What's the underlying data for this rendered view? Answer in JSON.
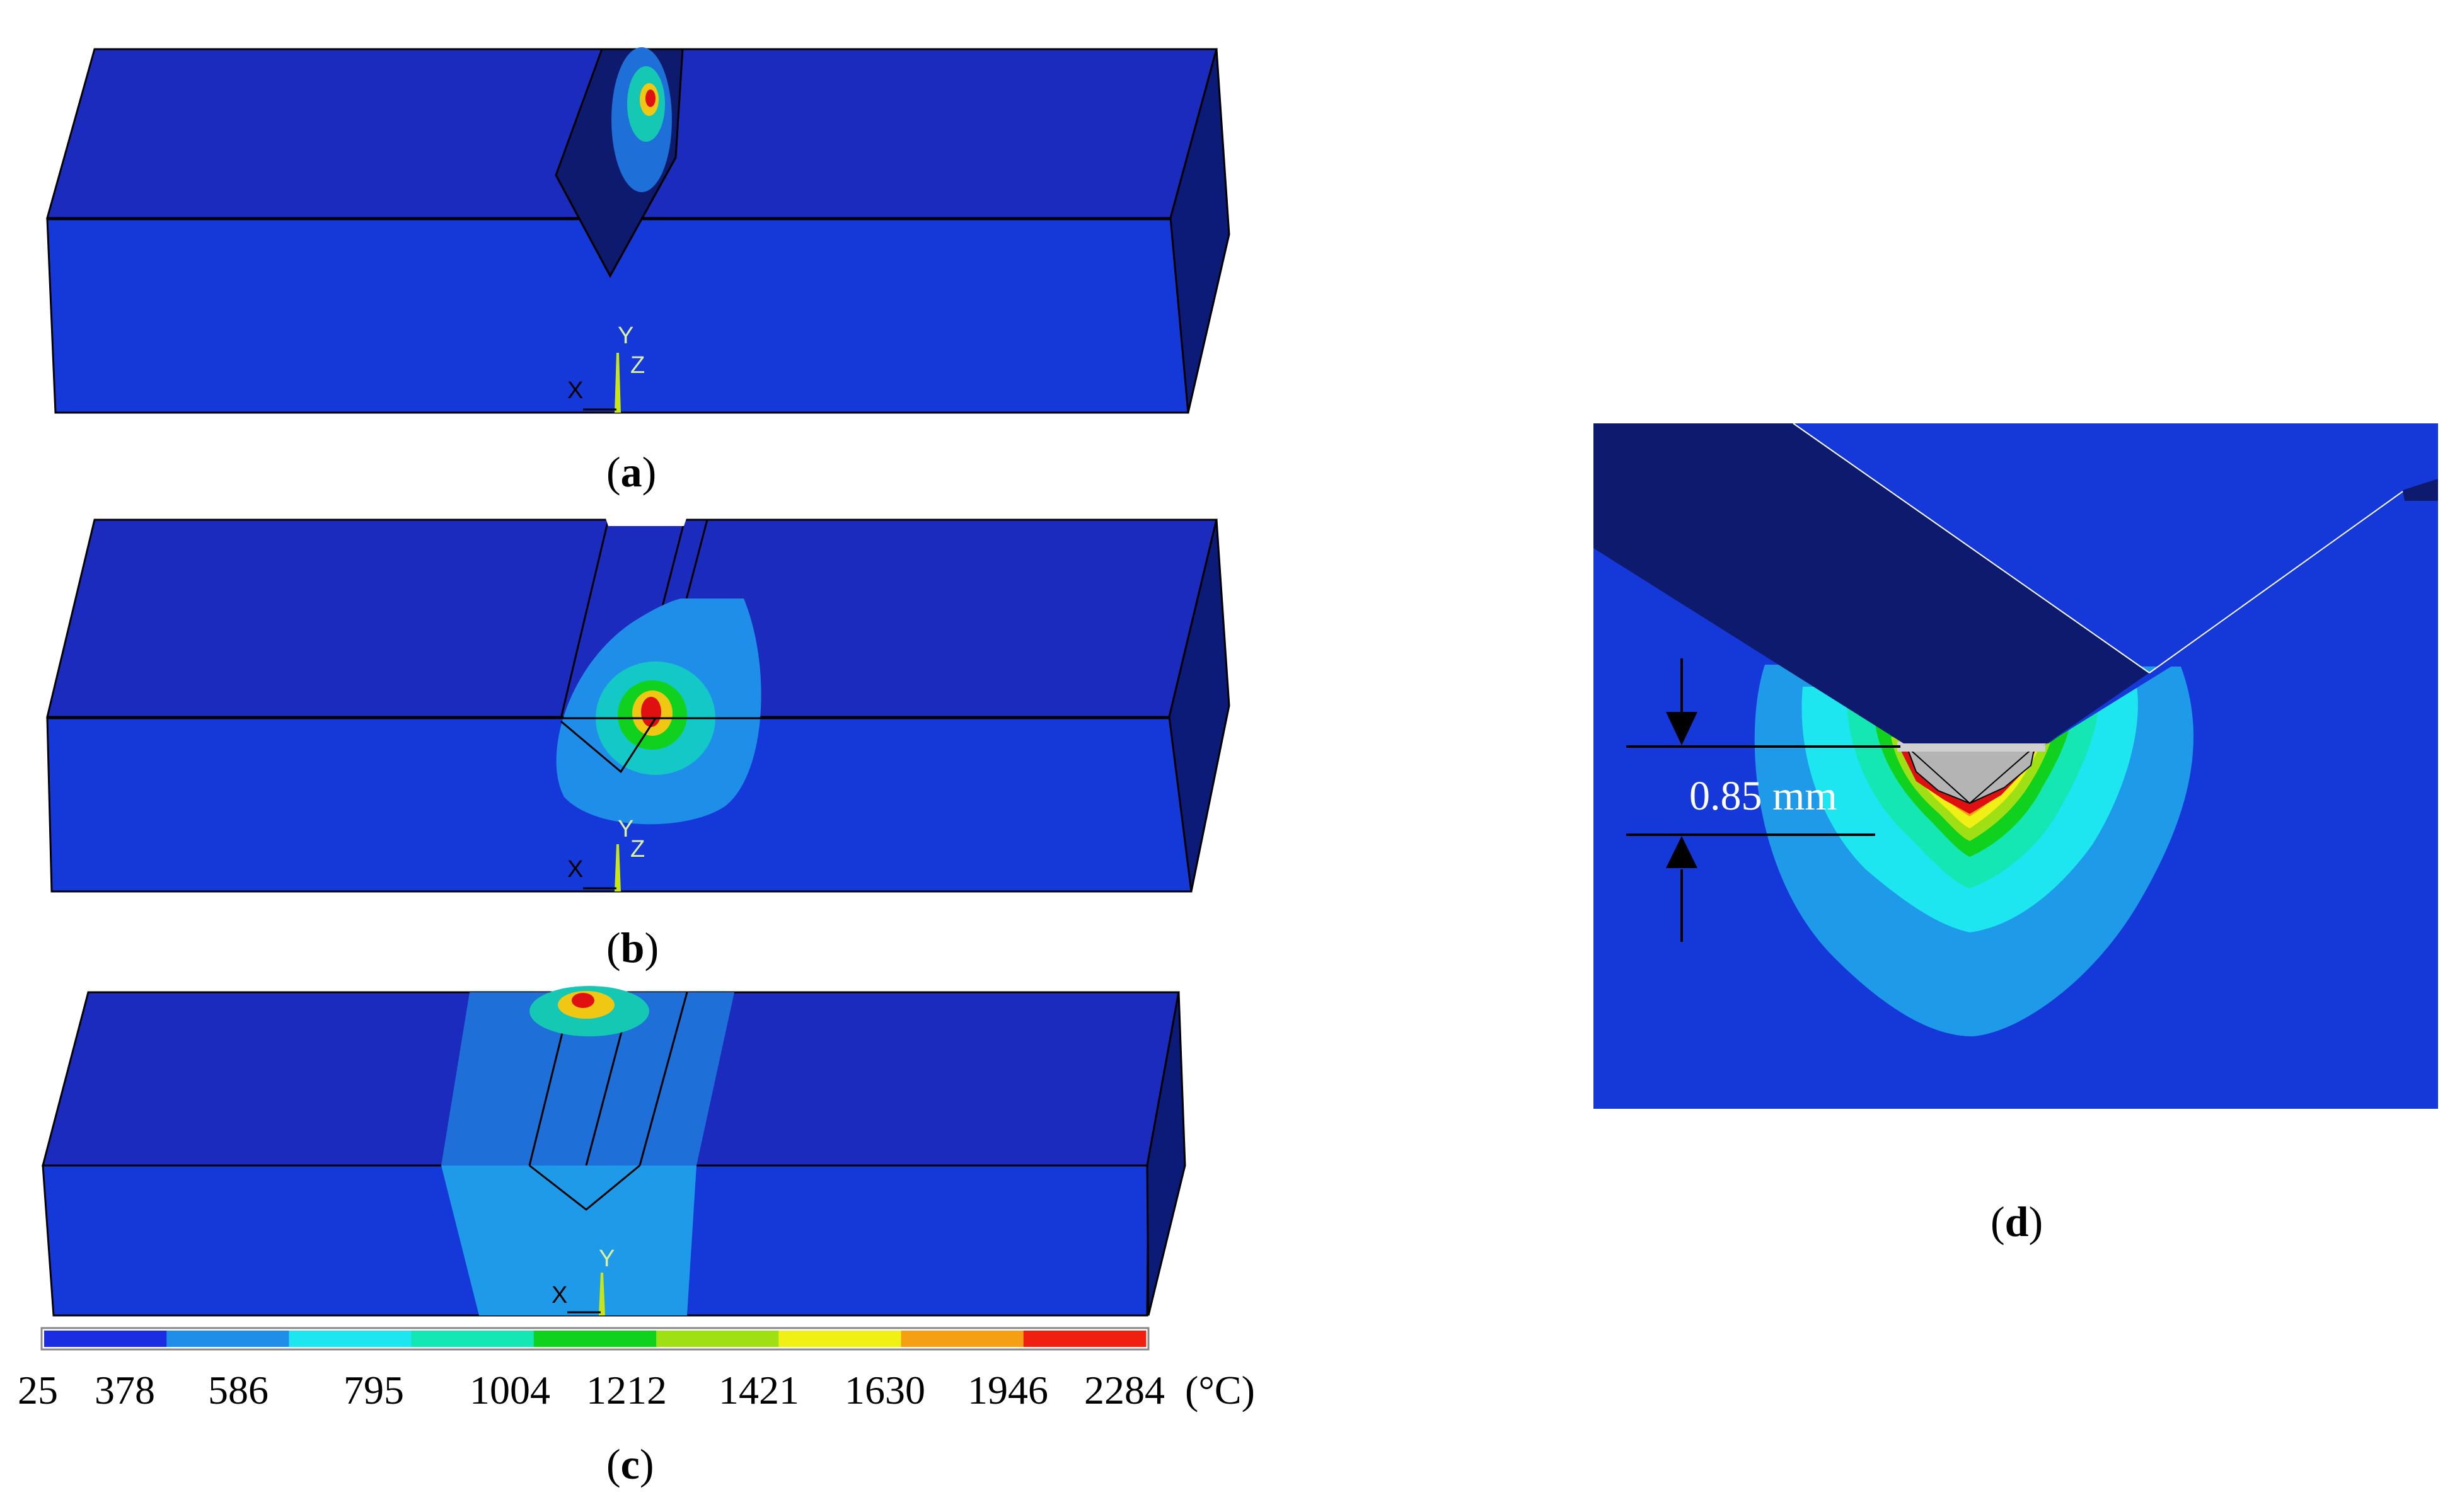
{
  "panels": {
    "a": {
      "label": "a",
      "axis": {
        "y": "Y",
        "z": "Z",
        "x": "X"
      }
    },
    "b": {
      "label": "b",
      "axis": {
        "y": "Y",
        "z": "Z",
        "x": "X"
      }
    },
    "c": {
      "label": "c",
      "axis": {
        "y": "Y",
        "x": "X"
      }
    },
    "d": {
      "label": "d",
      "dimension": "0.85 mm"
    }
  },
  "legend": {
    "ticks": [
      "25",
      "378",
      "586",
      "795",
      "1004",
      "1212",
      "1421",
      "1630",
      "1946",
      "2284"
    ],
    "unit": "(°C)",
    "colors": [
      "#1a2de0",
      "#1e8ee8",
      "#1ee6f0",
      "#14e6b4",
      "#10d21e",
      "#9ee014",
      "#f0f014",
      "#f5a014",
      "#f02010"
    ]
  },
  "colors": {
    "blue_front": "#1538d8",
    "blue_top": "#1a2bbd",
    "blue_side": "#0c1a78",
    "groove_dark": "#0d1a6e"
  }
}
